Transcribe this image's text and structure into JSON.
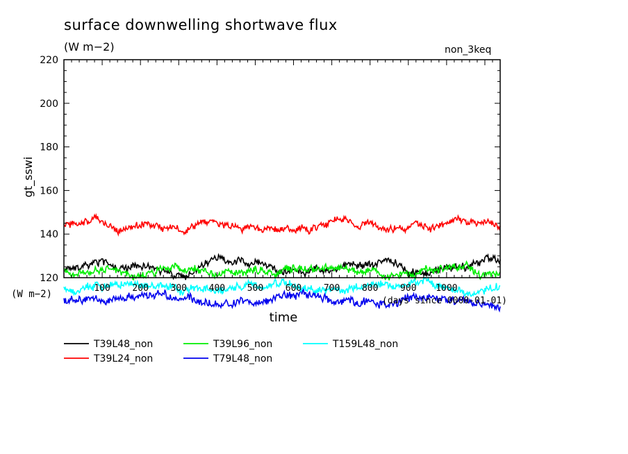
{
  "header": {
    "title": "surface downwelling shortwave flux",
    "units": "(W m−2)",
    "run_label": "non_3keq"
  },
  "chart_data": {
    "type": "line",
    "ylabel": "gt_sswi",
    "xlabel": "time",
    "x_units": "(W m−2)",
    "x_axis_caption": "days since 0000-01-01",
    "ylim": [
      120,
      220
    ],
    "yticks": [
      120,
      140,
      160,
      180,
      200,
      220
    ],
    "xlim": [
      0,
      1140
    ],
    "xticks": [
      100,
      200,
      300,
      400,
      500,
      600,
      700,
      800,
      900,
      1000
    ],
    "grid": false,
    "legend_position": "bottom-left",
    "series": [
      {
        "name": "T39L48_non",
        "color": "#000000",
        "mean": 125,
        "amp": 2.2,
        "noise": 1.8,
        "seed": 11
      },
      {
        "name": "T39L24_non",
        "color": "#ff0000",
        "mean": 144,
        "amp": 1.5,
        "noise": 1.8,
        "seed": 23
      },
      {
        "name": "T39L96_non",
        "color": "#00ee00",
        "mean": 123,
        "amp": 1.2,
        "noise": 2.0,
        "seed": 37
      },
      {
        "name": "T79L48_non",
        "color": "#0000ee",
        "mean": 110,
        "amp": 1.6,
        "noise": 2.0,
        "seed": 41
      },
      {
        "name": "T159L48_non",
        "color": "#00ffff",
        "mean": 116,
        "amp": 1.4,
        "noise": 2.0,
        "seed": 53
      }
    ],
    "legend_rows": [
      [
        "T39L48_non",
        "T39L96_non",
        "T159L48_non"
      ],
      [
        "T39L24_non",
        "T79L48_non"
      ]
    ]
  }
}
